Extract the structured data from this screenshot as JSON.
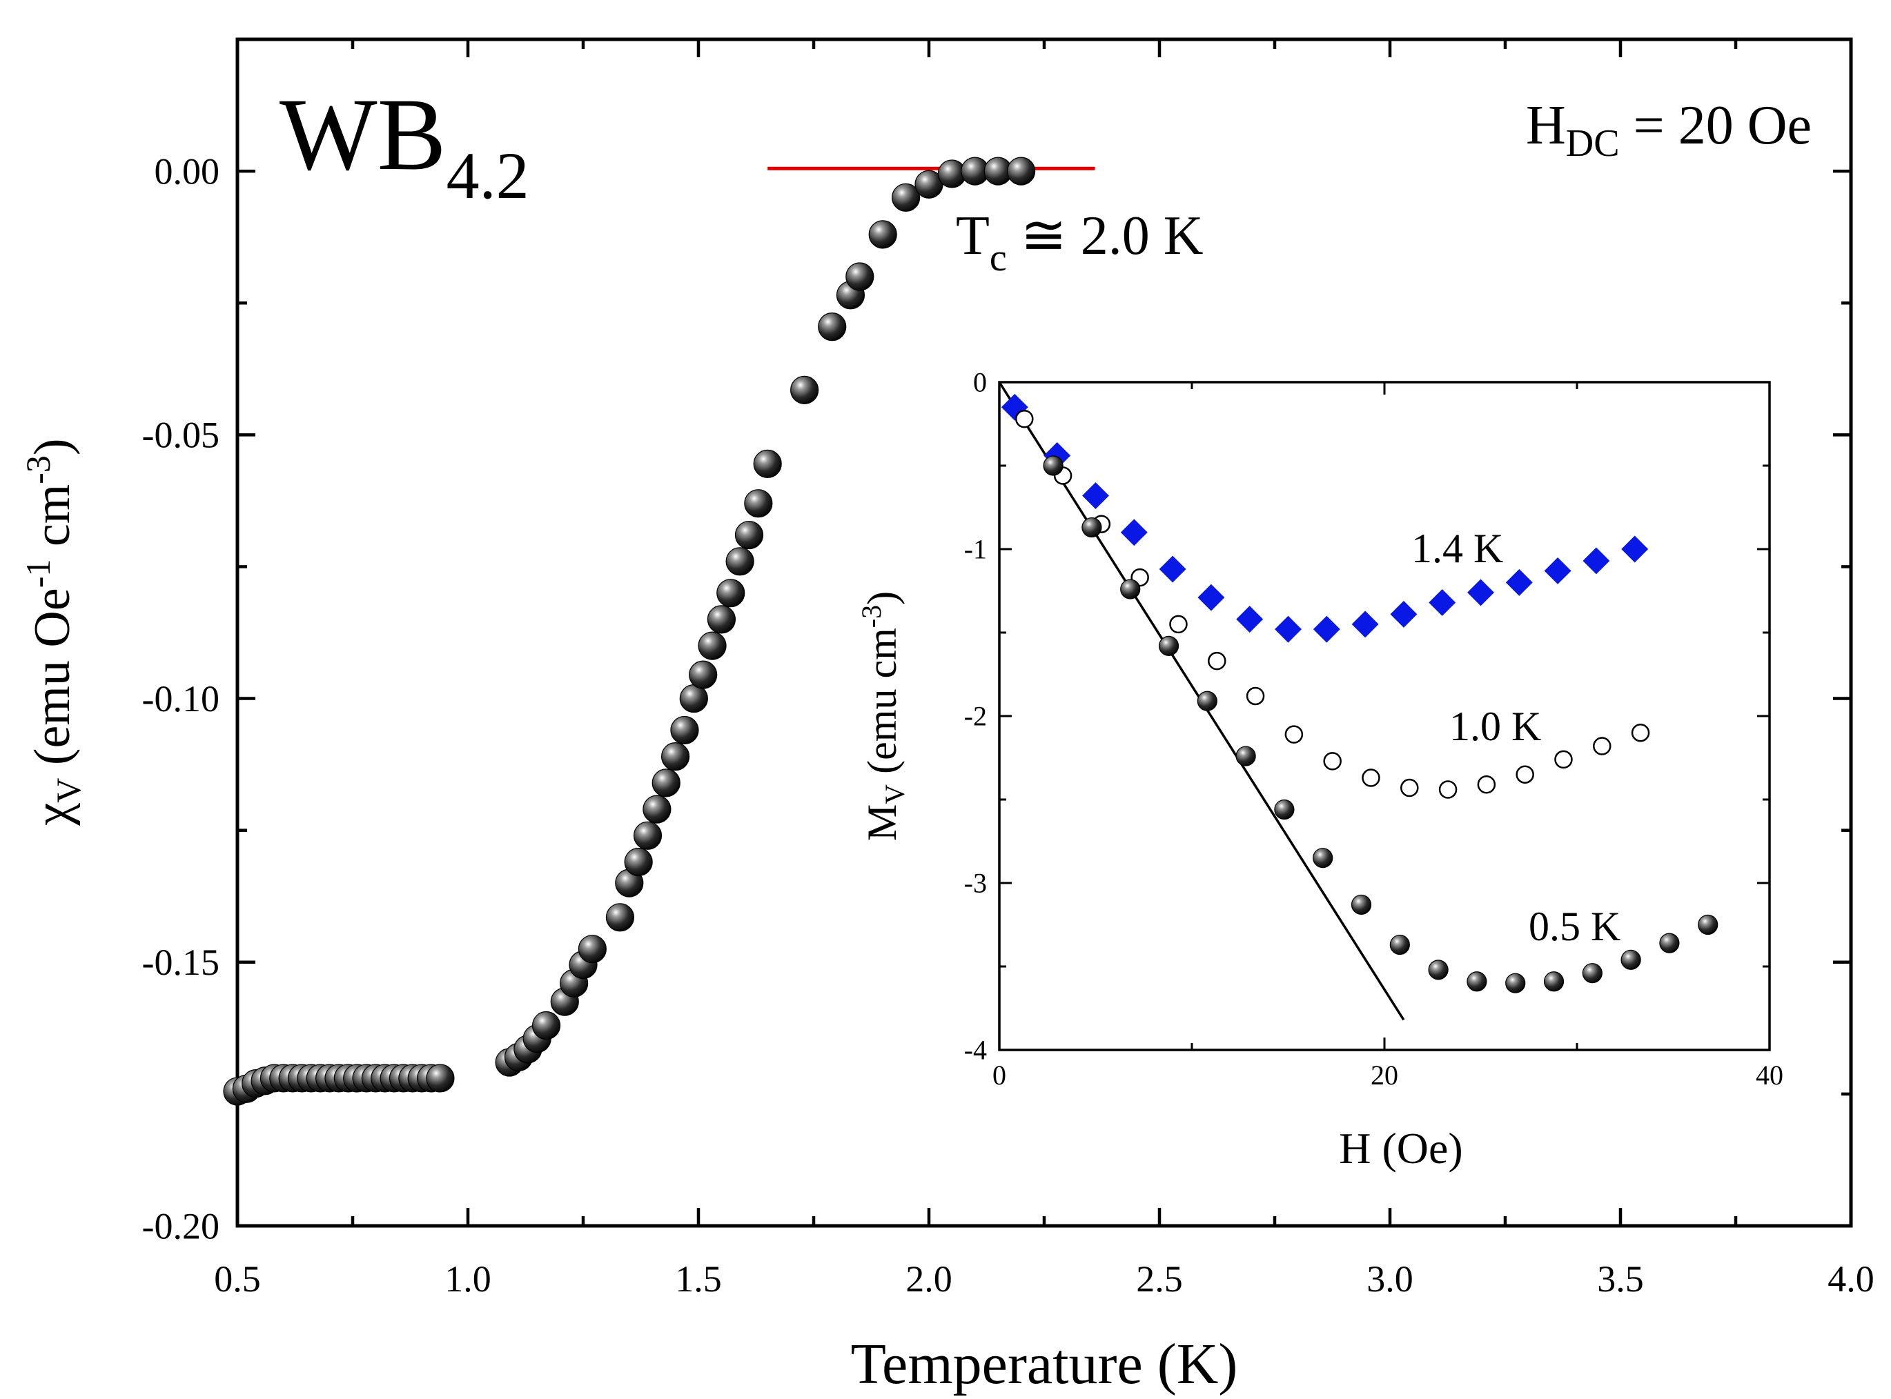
{
  "chart_data": [
    {
      "type": "scatter",
      "title": "",
      "xlabel": "Temperature (K)",
      "ylabel": {
        "main": "χ",
        "sub": "V",
        "unit_pre": " (emu Oe",
        "sup1": "-1",
        "unit_mid": " cm",
        "sup2": "-3",
        "unit_post": ")"
      },
      "xlim": [
        0.5,
        4.0
      ],
      "ylim": [
        -0.2,
        0.025
      ],
      "xticks": [
        0.5,
        1.0,
        1.5,
        2.0,
        2.5,
        3.0,
        3.5,
        4.0
      ],
      "xtick_labels": [
        "0.5",
        "1.0",
        "1.5",
        "2.0",
        "2.5",
        "3.0",
        "3.5",
        "4.0"
      ],
      "yticks": [
        0.0,
        -0.05,
        -0.1,
        -0.15,
        -0.2
      ],
      "ytick_labels": [
        "0.00",
        "-0.05",
        "-0.10",
        "-0.15",
        "-0.20"
      ],
      "grid": false,
      "annotations": {
        "sample": {
          "main": "WB",
          "sub": "4.2"
        },
        "field": {
          "main": "H",
          "sub": "DC",
          "rest": " = 20 Oe"
        },
        "tc": {
          "main": "T",
          "sub": "c",
          "rest": " ≅ 2.0 K"
        }
      },
      "tc_line": {
        "x": [
          1.65,
          2.36
        ],
        "y": 0.0005,
        "color": "#e00000"
      },
      "series": [
        {
          "marker": "sphere",
          "color": "#111111",
          "x": [
            0.5,
            0.52,
            0.54,
            0.56,
            0.58,
            0.6,
            0.62,
            0.64,
            0.66,
            0.68,
            0.7,
            0.72,
            0.74,
            0.76,
            0.78,
            0.8,
            0.82,
            0.84,
            0.86,
            0.88,
            0.9,
            0.92,
            0.94,
            1.09,
            1.11,
            1.13,
            1.15,
            1.17,
            1.21,
            1.23,
            1.25,
            1.27,
            1.33,
            1.35,
            1.37,
            1.39,
            1.41,
            1.43,
            1.45,
            1.47,
            1.49,
            1.51,
            1.53,
            1.55,
            1.57,
            1.59,
            1.61,
            1.63,
            1.65,
            1.73,
            1.79,
            1.83,
            1.85,
            1.9,
            1.95,
            2.0,
            2.05,
            2.1,
            2.15,
            2.2
          ],
          "y": [
            -0.1745,
            -0.174,
            -0.173,
            -0.1725,
            -0.172,
            -0.172,
            -0.172,
            -0.172,
            -0.172,
            -0.172,
            -0.172,
            -0.172,
            -0.172,
            -0.172,
            -0.172,
            -0.172,
            -0.172,
            -0.172,
            -0.172,
            -0.172,
            -0.172,
            -0.172,
            -0.172,
            -0.169,
            -0.168,
            -0.1665,
            -0.1645,
            -0.162,
            -0.1575,
            -0.154,
            -0.1505,
            -0.1475,
            -0.1415,
            -0.135,
            -0.131,
            -0.126,
            -0.121,
            -0.116,
            -0.111,
            -0.106,
            -0.1,
            -0.0955,
            -0.09,
            -0.085,
            -0.08,
            -0.074,
            -0.069,
            -0.063,
            -0.0555,
            -0.0415,
            -0.0295,
            -0.0235,
            -0.02,
            -0.012,
            -0.005,
            -0.0025,
            -0.0005,
            0.0,
            0.0,
            0.0
          ]
        }
      ]
    },
    {
      "type": "scatter",
      "title": "",
      "xlabel": "H (Oe)",
      "ylabel": {
        "main": "M",
        "sub": "V",
        "unit_pre": " (emu cm",
        "sup1": "-3",
        "unit_post": ")"
      },
      "xlim": [
        0,
        40
      ],
      "ylim": [
        -4,
        0
      ],
      "xticks": [
        0,
        20,
        40
      ],
      "xtick_labels": [
        "0",
        "20",
        "40"
      ],
      "yticks": [
        0,
        -1,
        -2,
        -3,
        -4
      ],
      "ytick_labels": [
        "0",
        "-1",
        "-2",
        "-3",
        "-4"
      ],
      "grid": false,
      "fit_line": {
        "x": [
          0,
          21
        ],
        "y": [
          0,
          -3.82
        ],
        "color": "#000000"
      },
      "series": [
        {
          "label": "1.4 K",
          "marker": "diamond",
          "color": "#0a18e6",
          "x": [
            0.8,
            3.0,
            5.0,
            7.0,
            9.0,
            11.0,
            13.0,
            15.0,
            17.0,
            19.0,
            21.0,
            23.0,
            25.0,
            27.0,
            29.0,
            31.0,
            33.0
          ],
          "y": [
            -0.15,
            -0.44,
            -0.68,
            -0.9,
            -1.12,
            -1.29,
            -1.42,
            -1.48,
            -1.48,
            -1.45,
            -1.39,
            -1.32,
            -1.26,
            -1.2,
            -1.13,
            -1.07,
            -1.0
          ]
        },
        {
          "label": "1.0 K",
          "marker": "open-circle",
          "color": "#000000",
          "x": [
            1.3,
            3.3,
            5.3,
            7.3,
            9.3,
            11.3,
            13.3,
            15.3,
            17.3,
            19.3,
            21.3,
            23.3,
            25.3,
            27.3,
            29.3,
            31.3,
            33.3
          ],
          "y": [
            -0.22,
            -0.56,
            -0.85,
            -1.17,
            -1.45,
            -1.67,
            -1.88,
            -2.11,
            -2.27,
            -2.37,
            -2.43,
            -2.44,
            -2.41,
            -2.35,
            -2.26,
            -2.18,
            -2.1
          ]
        },
        {
          "label": "0.5 K",
          "marker": "sphere",
          "color": "#111111",
          "x": [
            2.8,
            4.8,
            6.8,
            8.8,
            10.8,
            12.8,
            14.8,
            16.8,
            18.8,
            20.8,
            22.8,
            24.8,
            26.8,
            28.8,
            30.8,
            32.8,
            34.8,
            36.8
          ],
          "y": [
            -0.5,
            -0.87,
            -1.24,
            -1.58,
            -1.91,
            -2.24,
            -2.56,
            -2.85,
            -3.13,
            -3.37,
            -3.52,
            -3.59,
            -3.6,
            -3.59,
            -3.54,
            -3.46,
            -3.36,
            -3.25
          ]
        }
      ]
    }
  ]
}
